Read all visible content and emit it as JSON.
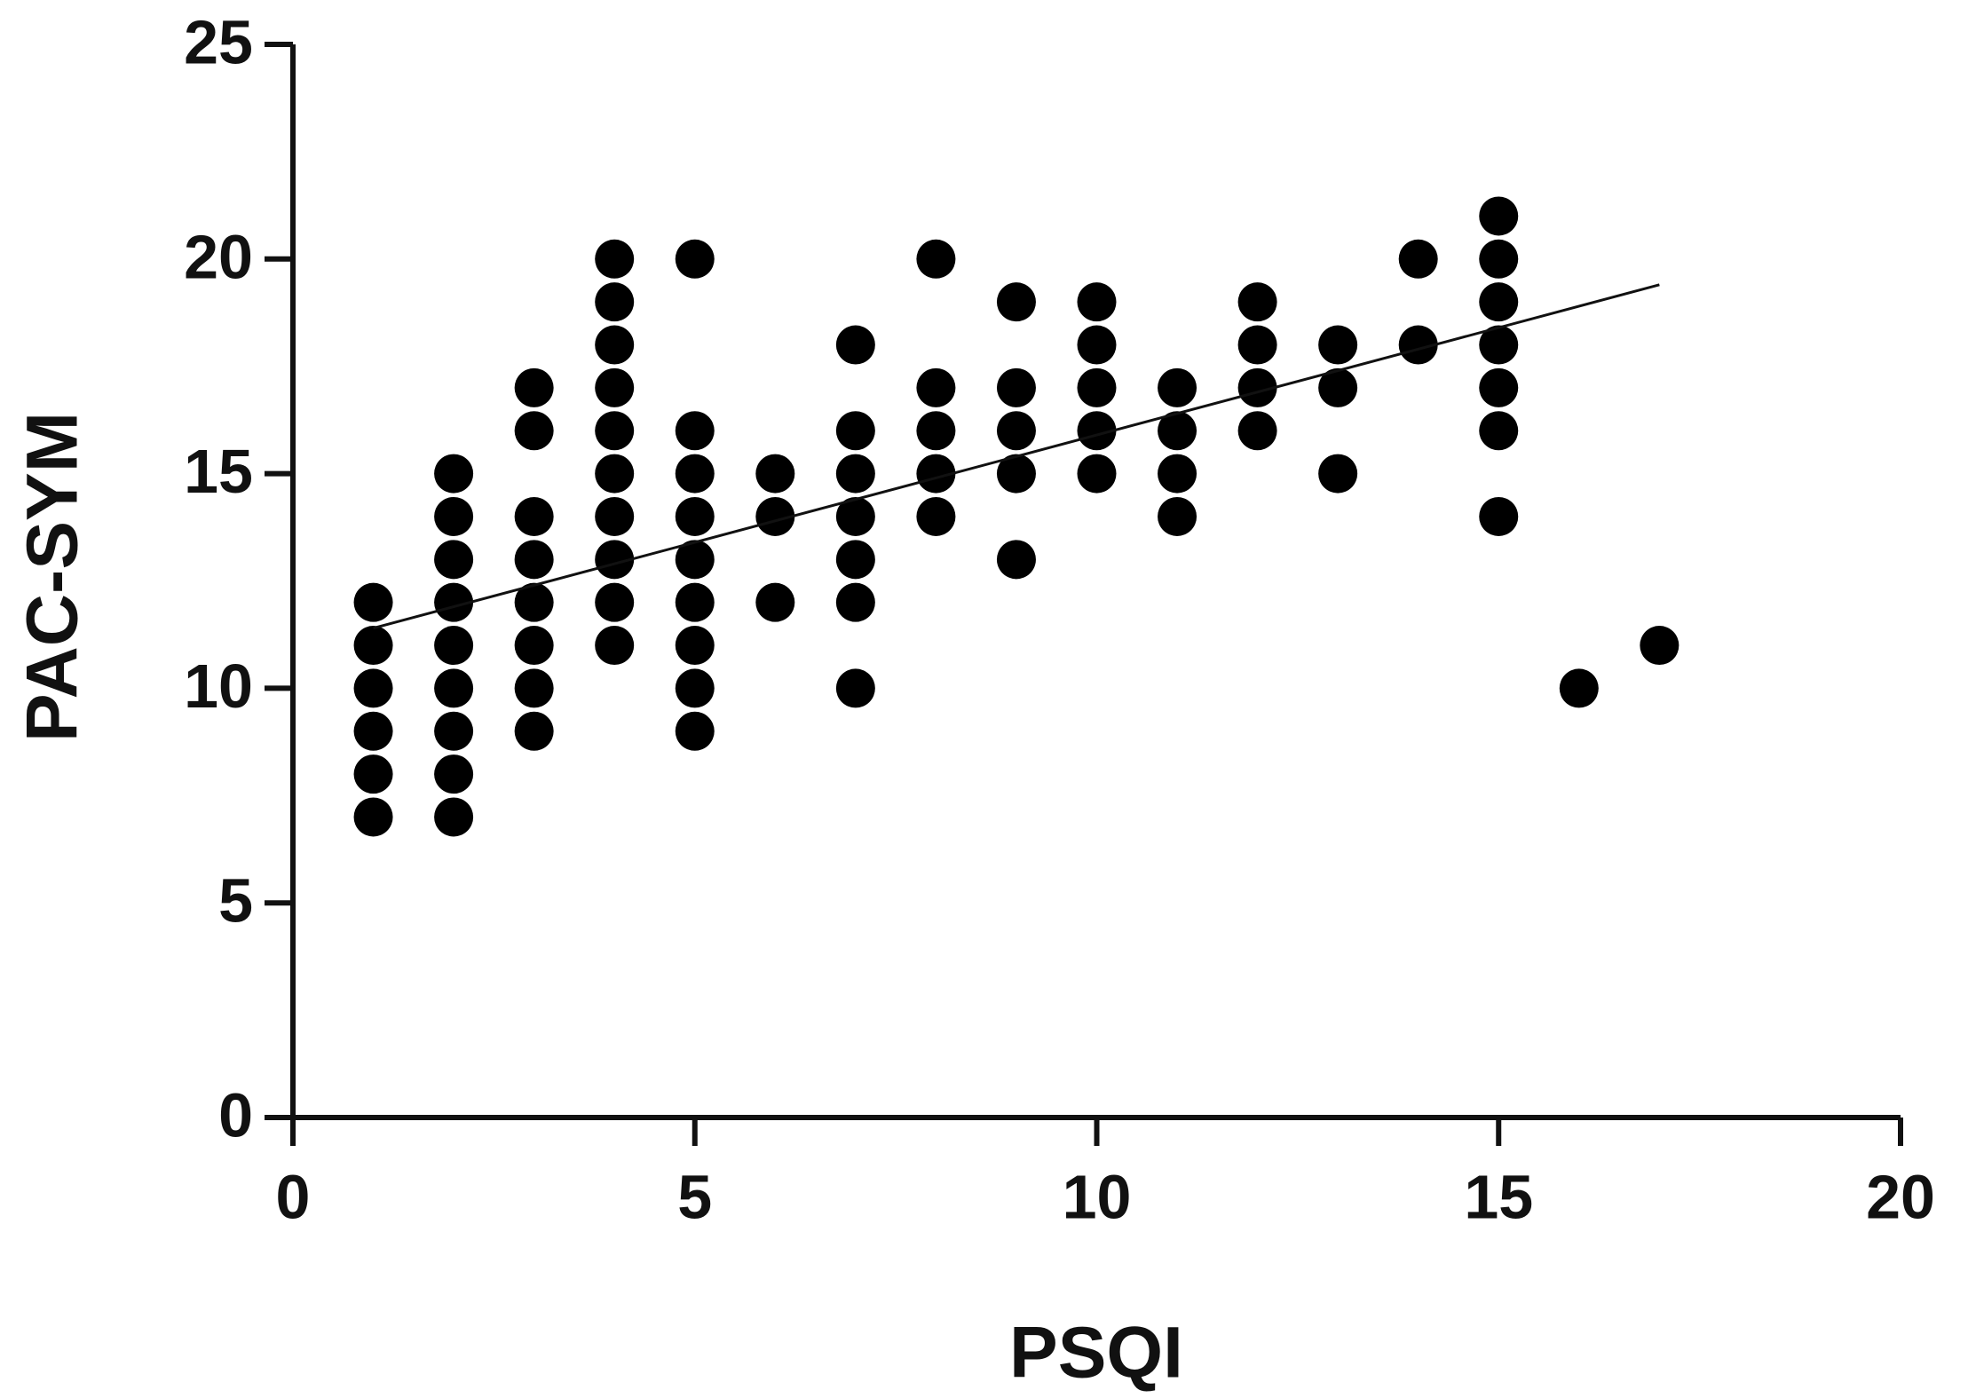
{
  "chart_data": {
    "type": "scatter",
    "x_label": "PSQI",
    "y_label": "PAC-SYM",
    "x": [
      1,
      1,
      1,
      1,
      1,
      1,
      2,
      2,
      2,
      2,
      2,
      2,
      2,
      2,
      2,
      3,
      3,
      3,
      3,
      3,
      3,
      3,
      3,
      4,
      4,
      4,
      4,
      4,
      4,
      4,
      4,
      4,
      4,
      5,
      5,
      5,
      5,
      5,
      5,
      5,
      5,
      5,
      6,
      6,
      6,
      7,
      7,
      7,
      7,
      7,
      7,
      7,
      8,
      8,
      8,
      8,
      8,
      9,
      9,
      9,
      9,
      9,
      10,
      10,
      10,
      10,
      10,
      11,
      11,
      11,
      11,
      12,
      12,
      12,
      12,
      13,
      13,
      13,
      14,
      14,
      15,
      15,
      15,
      15,
      15,
      15,
      15,
      16,
      17
    ],
    "y": [
      12,
      11,
      10,
      9,
      8,
      7,
      15,
      14,
      13,
      12,
      11,
      10,
      9,
      8,
      7,
      17,
      16,
      14,
      13,
      12,
      11,
      10,
      9,
      20,
      19,
      18,
      17,
      16,
      15,
      14,
      13,
      12,
      11,
      20,
      16,
      15,
      14,
      13,
      12,
      11,
      10,
      9,
      15,
      14,
      12,
      18,
      16,
      15,
      14,
      13,
      12,
      10,
      20,
      17,
      16,
      15,
      14,
      19,
      17,
      16,
      15,
      13,
      19,
      18,
      17,
      16,
      15,
      17,
      16,
      15,
      14,
      19,
      18,
      17,
      16,
      18,
      17,
      15,
      20,
      18,
      21,
      20,
      19,
      18,
      17,
      16,
      14,
      10,
      11
    ],
    "color": "#000000",
    "trend_line": {
      "x": [
        1,
        17
      ],
      "y": [
        11.4,
        19.4
      ]
    },
    "xlim": [
      0,
      20
    ],
    "xticks": [
      0,
      5,
      10,
      15,
      20
    ],
    "ylim": [
      0,
      25
    ],
    "yticks": [
      0,
      5,
      10,
      15,
      20,
      25
    ]
  }
}
